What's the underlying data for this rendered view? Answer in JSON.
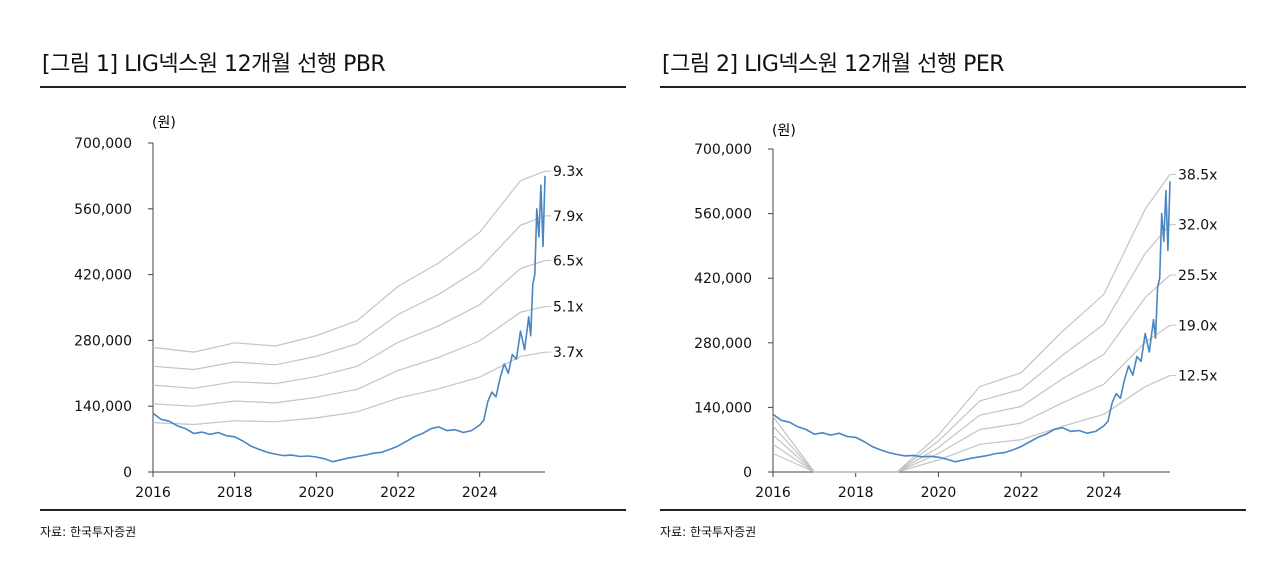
{
  "charts": [
    {
      "id": "pbr",
      "title": "[그림 1] LIG넥스원 12개월 선행 PBR",
      "source": "자료: 한국투자증권",
      "unit_label": "(원)",
      "yticks": [
        "700,000",
        "560,000",
        "420,000",
        "280,000",
        "140,000",
        "0"
      ],
      "xticks": [
        "2016",
        "2018",
        "2020",
        "2022",
        "2024"
      ]
    },
    {
      "id": "per",
      "title": "[그림 2] LIG넥스원 12개월 선행 PER",
      "source": "자료: 한국투자증권",
      "unit_label": "(원)",
      "yticks": [
        "700,000",
        "560,000",
        "420,000",
        "280,000",
        "140,000",
        "0"
      ],
      "xticks": [
        "2016",
        "2018",
        "2020",
        "2022",
        "2024"
      ]
    }
  ],
  "chart_data": [
    {
      "type": "line",
      "title": "[그림 1] LIG넥스원 12개월 선행 PBR",
      "ylabel": "(원)",
      "ylim": [
        0,
        700000
      ],
      "xlim": [
        2016.0,
        2025.6
      ],
      "grid": false,
      "colors": {
        "price": "#4a86c2",
        "band": "#c4c4c4"
      },
      "price": {
        "x": [
          2016.0,
          2016.2,
          2016.4,
          2016.6,
          2016.8,
          2017.0,
          2017.2,
          2017.4,
          2017.6,
          2017.8,
          2018.0,
          2018.2,
          2018.4,
          2018.6,
          2018.8,
          2019.0,
          2019.2,
          2019.4,
          2019.6,
          2019.8,
          2020.0,
          2020.2,
          2020.4,
          2020.6,
          2020.8,
          2021.0,
          2021.2,
          2021.4,
          2021.6,
          2021.8,
          2022.0,
          2022.2,
          2022.4,
          2022.6,
          2022.8,
          2023.0,
          2023.2,
          2023.4,
          2023.6,
          2023.8,
          2024.0,
          2024.1,
          2024.2,
          2024.3,
          2024.4,
          2024.5,
          2024.6,
          2024.7,
          2024.8,
          2024.9,
          2025.0,
          2025.1,
          2025.2,
          2025.25,
          2025.3,
          2025.35,
          2025.4,
          2025.45,
          2025.5,
          2025.55,
          2025.6
        ],
        "values": [
          125000,
          112000,
          108000,
          98000,
          92000,
          82000,
          85000,
          80000,
          84000,
          77000,
          75000,
          66000,
          55000,
          48000,
          42000,
          38000,
          35000,
          36000,
          33000,
          34000,
          32000,
          28000,
          22000,
          26000,
          30000,
          33000,
          36000,
          40000,
          42000,
          48000,
          55000,
          65000,
          75000,
          82000,
          92000,
          96000,
          88000,
          90000,
          84000,
          88000,
          100000,
          110000,
          150000,
          170000,
          160000,
          200000,
          230000,
          210000,
          250000,
          240000,
          300000,
          260000,
          330000,
          290000,
          400000,
          420000,
          560000,
          500000,
          610000,
          480000,
          630000
        ]
      },
      "series": [
        {
          "name": "9.3x",
          "x": [
            2016.0,
            2017.0,
            2018.0,
            2019.0,
            2020.0,
            2021.0,
            2022.0,
            2023.0,
            2024.0,
            2025.0,
            2025.6
          ],
          "values": [
            265000,
            255000,
            275000,
            268000,
            290000,
            322000,
            395000,
            445000,
            510000,
            620000,
            640000
          ]
        },
        {
          "name": "7.9x",
          "x": [
            2016.0,
            2017.0,
            2018.0,
            2019.0,
            2020.0,
            2021.0,
            2022.0,
            2023.0,
            2024.0,
            2025.0,
            2025.6
          ],
          "values": [
            225000,
            218000,
            234000,
            228000,
            246000,
            273000,
            335000,
            378000,
            433000,
            525000,
            545000
          ]
        },
        {
          "name": "6.5x",
          "x": [
            2016.0,
            2017.0,
            2018.0,
            2019.0,
            2020.0,
            2021.0,
            2022.0,
            2023.0,
            2024.0,
            2025.0,
            2025.6
          ],
          "values": [
            185000,
            178000,
            192000,
            188000,
            203000,
            225000,
            276000,
            311000,
            356000,
            433000,
            450000
          ]
        },
        {
          "name": "5.1x",
          "x": [
            2016.0,
            2017.0,
            2018.0,
            2019.0,
            2020.0,
            2021.0,
            2022.0,
            2023.0,
            2024.0,
            2025.0,
            2025.6
          ],
          "values": [
            145000,
            140000,
            151000,
            147000,
            159000,
            176000,
            216000,
            244000,
            279000,
            340000,
            352000
          ]
        },
        {
          "name": "3.7x",
          "x": [
            2016.0,
            2017.0,
            2018.0,
            2019.0,
            2020.0,
            2021.0,
            2022.0,
            2023.0,
            2024.0,
            2025.0,
            2025.6
          ],
          "values": [
            105000,
            101000,
            109000,
            107000,
            115000,
            128000,
            157000,
            177000,
            202000,
            246000,
            255000
          ]
        }
      ]
    },
    {
      "type": "line",
      "title": "[그림 2] LIG넥스원 12개월 선행 PER",
      "ylabel": "(원)",
      "ylim": [
        0,
        700000
      ],
      "xlim": [
        2016.0,
        2025.6
      ],
      "grid": false,
      "colors": {
        "price": "#4a86c2",
        "band": "#c4c4c4"
      },
      "price": {
        "x": [
          2016.0,
          2016.2,
          2016.4,
          2016.6,
          2016.8,
          2017.0,
          2017.2,
          2017.4,
          2017.6,
          2017.8,
          2018.0,
          2018.2,
          2018.4,
          2018.6,
          2018.8,
          2019.0,
          2019.2,
          2019.4,
          2019.6,
          2019.8,
          2020.0,
          2020.2,
          2020.4,
          2020.6,
          2020.8,
          2021.0,
          2021.2,
          2021.4,
          2021.6,
          2021.8,
          2022.0,
          2022.2,
          2022.4,
          2022.6,
          2022.8,
          2023.0,
          2023.2,
          2023.4,
          2023.6,
          2023.8,
          2024.0,
          2024.1,
          2024.2,
          2024.3,
          2024.4,
          2024.5,
          2024.6,
          2024.7,
          2024.8,
          2024.9,
          2025.0,
          2025.1,
          2025.2,
          2025.25,
          2025.3,
          2025.35,
          2025.4,
          2025.45,
          2025.5,
          2025.55,
          2025.6
        ],
        "values": [
          125000,
          112000,
          108000,
          98000,
          92000,
          82000,
          85000,
          80000,
          84000,
          77000,
          75000,
          66000,
          55000,
          48000,
          42000,
          38000,
          35000,
          36000,
          33000,
          34000,
          32000,
          28000,
          22000,
          26000,
          30000,
          33000,
          36000,
          40000,
          42000,
          48000,
          55000,
          65000,
          75000,
          82000,
          92000,
          96000,
          88000,
          90000,
          84000,
          88000,
          100000,
          110000,
          150000,
          170000,
          160000,
          200000,
          230000,
          210000,
          250000,
          240000,
          300000,
          260000,
          330000,
          290000,
          400000,
          420000,
          560000,
          500000,
          610000,
          480000,
          630000
        ]
      },
      "series": [
        {
          "name": "38.5x",
          "x": [
            2016.0,
            2017.0,
            2018.0,
            2019.0,
            2020.0,
            2021.0,
            2022.0,
            2023.0,
            2024.0,
            2025.0,
            2025.6
          ],
          "values": [
            120000,
            0,
            0,
            0,
            80000,
            185000,
            215000,
            305000,
            385000,
            570000,
            645000
          ]
        },
        {
          "name": "32.0x",
          "x": [
            2016.0,
            2017.0,
            2018.0,
            2019.0,
            2020.0,
            2021.0,
            2022.0,
            2023.0,
            2024.0,
            2025.0,
            2025.6
          ],
          "values": [
            100000,
            0,
            0,
            0,
            67000,
            154000,
            179000,
            253000,
            320000,
            474000,
            536000
          ]
        },
        {
          "name": "25.5x",
          "x": [
            2016.0,
            2017.0,
            2018.0,
            2019.0,
            2020.0,
            2021.0,
            2022.0,
            2023.0,
            2024.0,
            2025.0,
            2025.6
          ],
          "values": [
            80000,
            0,
            0,
            0,
            53000,
            123000,
            142000,
            202000,
            255000,
            378000,
            427000
          ]
        },
        {
          "name": "19.0x",
          "x": [
            2016.0,
            2017.0,
            2018.0,
            2019.0,
            2020.0,
            2021.0,
            2022.0,
            2023.0,
            2024.0,
            2025.0,
            2025.6
          ],
          "values": [
            60000,
            0,
            0,
            0,
            40000,
            92000,
            106000,
            150000,
            190000,
            281000,
            318000
          ]
        },
        {
          "name": "12.5x",
          "x": [
            2016.0,
            2017.0,
            2018.0,
            2019.0,
            2020.0,
            2021.0,
            2022.0,
            2023.0,
            2024.0,
            2025.0,
            2025.6
          ],
          "values": [
            40000,
            0,
            0,
            0,
            26000,
            60000,
            70000,
            99000,
            125000,
            185000,
            209000
          ]
        }
      ]
    }
  ]
}
